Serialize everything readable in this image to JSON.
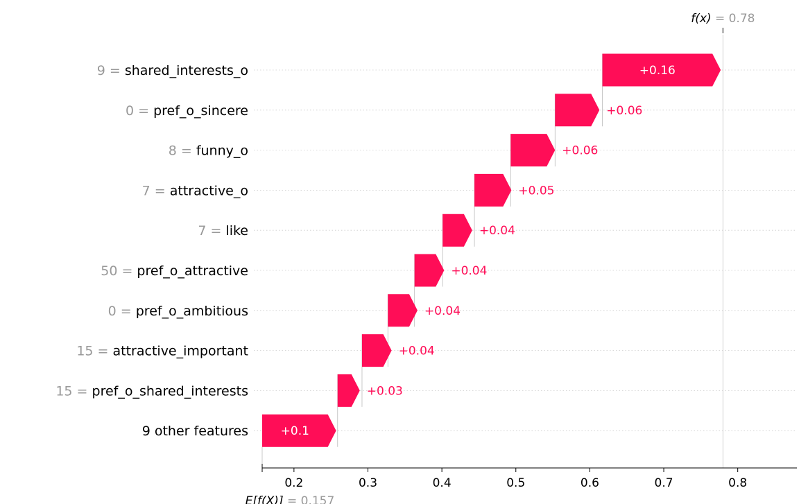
{
  "chart_data": {
    "type": "waterfall",
    "colors": {
      "positive": "#ff0d57",
      "label_gray": "#999999",
      "grid": "#cccccc"
    },
    "base_value": {
      "label": "E[f(X)]",
      "value_text": "0.157",
      "value": 0.157
    },
    "output_value": {
      "label": "f(x)",
      "value_text": "0.78",
      "value": 0.78
    },
    "features": [
      {
        "value": "9",
        "name": "shared_interests_o",
        "contribution": 0.16,
        "label": "+0.16",
        "start": 0.617
      },
      {
        "value": "0",
        "name": "pref_o_sincere",
        "contribution": 0.06,
        "label": "+0.06",
        "start": 0.553
      },
      {
        "value": "8",
        "name": "funny_o",
        "contribution": 0.06,
        "label": "+0.06",
        "start": 0.493
      },
      {
        "value": "7",
        "name": "attractive_o",
        "contribution": 0.05,
        "label": "+0.05",
        "start": 0.444
      },
      {
        "value": "7",
        "name": "like",
        "contribution": 0.04,
        "label": "+0.04",
        "start": 0.401
      },
      {
        "value": "50",
        "name": "pref_o_attractive",
        "contribution": 0.04,
        "label": "+0.04",
        "start": 0.363
      },
      {
        "value": "0",
        "name": "pref_o_ambitious",
        "contribution": 0.04,
        "label": "+0.04",
        "start": 0.327
      },
      {
        "value": "15",
        "name": "attractive_important",
        "contribution": 0.04,
        "label": "+0.04",
        "start": 0.292
      },
      {
        "value": "15",
        "name": "pref_o_shared_interests",
        "contribution": 0.03,
        "label": "+0.03",
        "start": 0.259
      },
      {
        "value": "",
        "name": "9 other features",
        "contribution": 0.1,
        "label": "+0.1",
        "start": 0.157
      }
    ],
    "x_ticks": [
      {
        "value": 0.2,
        "label": "0.2"
      },
      {
        "value": 0.3,
        "label": "0.3"
      },
      {
        "value": 0.4,
        "label": "0.4"
      },
      {
        "value": 0.5,
        "label": "0.5"
      },
      {
        "value": 0.6,
        "label": "0.6"
      },
      {
        "value": 0.7,
        "label": "0.7"
      },
      {
        "value": 0.8,
        "label": "0.8"
      }
    ],
    "xlim": [
      0.157,
      0.88
    ]
  }
}
